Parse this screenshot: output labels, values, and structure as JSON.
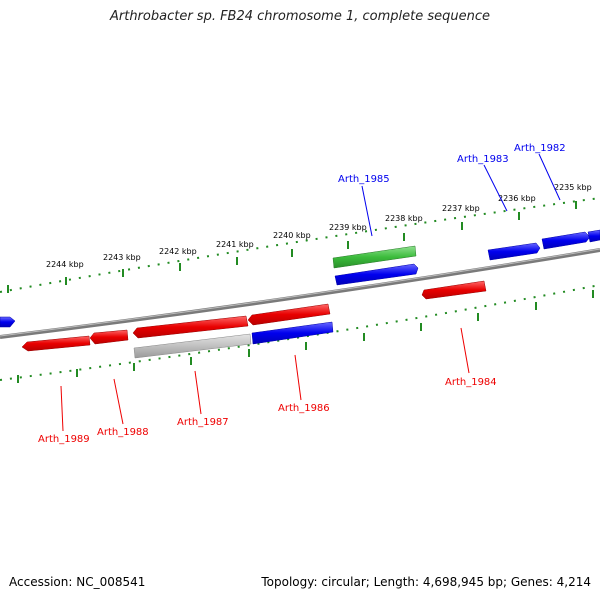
{
  "title": "Arthrobacter sp. FB24 chromosome 1, complete sequence",
  "accession": "Accession: NC_008541",
  "info": "Topology: circular; Length: 4,698,945 bp; Genes: 4,214",
  "colors": {
    "forward": "#0000ee",
    "reverse": "#ee0000",
    "rna": "#33bb33",
    "other": "#bbbbbb",
    "backbone": "#888888",
    "tick": "#228B22"
  },
  "tick_labels": {
    "2235": "2235 kbp",
    "2236": "2236 kbp",
    "2237": "2237 kbp",
    "2238": "2238 kbp",
    "2239": "2239 kbp",
    "2240": "2240 kbp",
    "2241": "2241 kbp",
    "2242": "2242 kbp",
    "2243": "2243 kbp",
    "2244": "2244 kbp"
  },
  "gene_labels": {
    "g1982": "Arth_1982",
    "g1983": "Arth_1983",
    "g1984": "Arth_1984",
    "g1985": "Arth_1985",
    "g1986": "Arth_1986",
    "g1987": "Arth_1987",
    "g1988": "Arth_1988",
    "g1989": "Arth_1989"
  }
}
